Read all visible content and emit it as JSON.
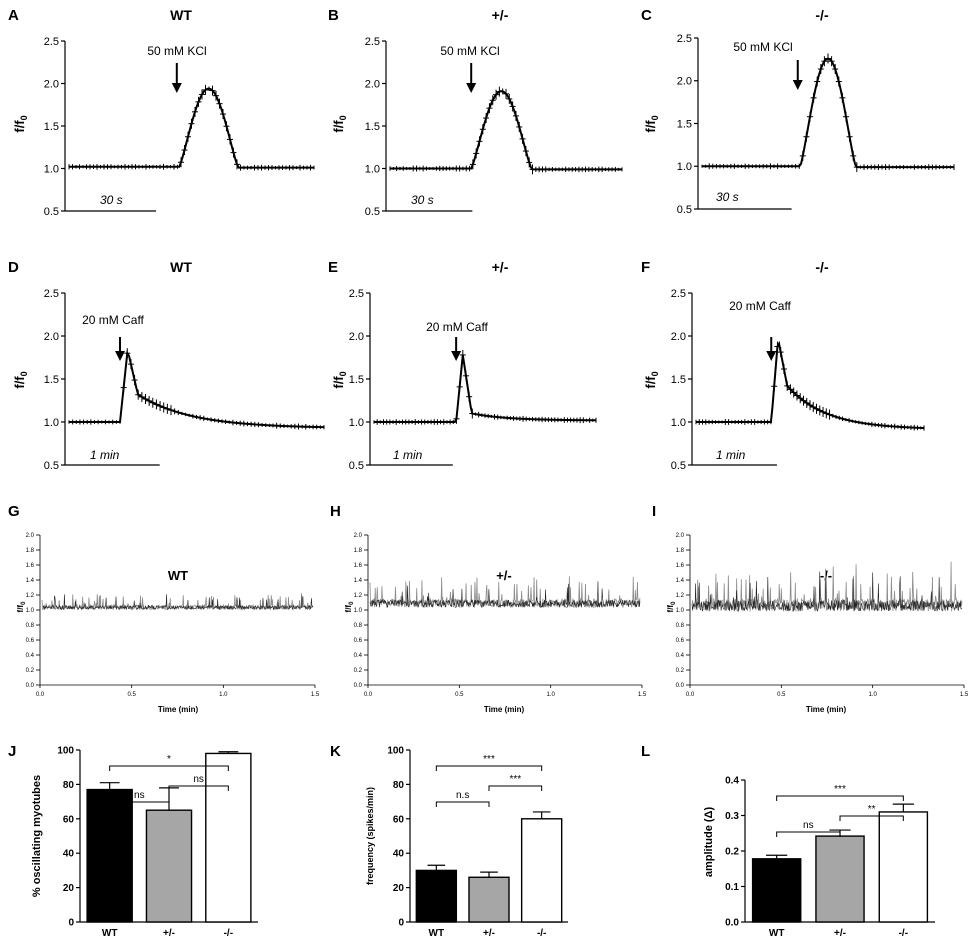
{
  "chart_data": [
    {
      "id": "A",
      "type": "line",
      "title": "WT",
      "ylabel": "f/f0",
      "ylim": [
        0.5,
        2.5
      ],
      "yticks": [
        "0.5",
        "1.0",
        "1.5",
        "2.0",
        "2.5"
      ],
      "annotation": "50 mM KCl",
      "scalebar": "30 s",
      "profile": "kcl",
      "base": 1.02,
      "peak": 1.94,
      "onset": 0.45,
      "width": 0.24,
      "errorbars": true,
      "arrow_x": 0.44
    },
    {
      "id": "B",
      "type": "line",
      "title": "+/-",
      "ylabel": "f/f0",
      "ylim": [
        0.5,
        2.5
      ],
      "yticks": [
        "0.5",
        "1.0",
        "1.5",
        "2.0",
        "2.5"
      ],
      "annotation": "50 mM KCl",
      "scalebar": "30 s",
      "profile": "kcl",
      "base": 1.0,
      "peak": 1.91,
      "onset": 0.35,
      "width": 0.26,
      "errorbars": true,
      "arrow_x": 0.35
    },
    {
      "id": "C",
      "type": "line",
      "title": "-/-",
      "ylabel": "f/f0",
      "ylim": [
        0.5,
        2.5
      ],
      "yticks": [
        "0.5",
        "1.0",
        "1.5",
        "2.0",
        "2.5"
      ],
      "annotation": "50 mM KCl",
      "scalebar": "30 s",
      "profile": "kcl",
      "base": 1.0,
      "peak": 2.26,
      "onset": 0.39,
      "width": 0.22,
      "errorbars": true,
      "arrow_x": 0.38
    },
    {
      "id": "D",
      "type": "line",
      "title": "WT",
      "ylabel": "f/f0",
      "ylim": [
        0.5,
        2.5
      ],
      "yticks": [
        "0.5",
        "1.0",
        "1.5",
        "2.0",
        "2.5"
      ],
      "annotation": "20 mM Caff",
      "scalebar": "1 min",
      "profile": "caff",
      "base": 1.0,
      "peak": 1.84,
      "shoulder": 1.32,
      "end": 0.94,
      "onset": 0.2,
      "errorbars": true,
      "arrow_x": 0.2
    },
    {
      "id": "E",
      "type": "line",
      "title": "+/-",
      "ylabel": "f/f0",
      "ylim": [
        0.5,
        2.5
      ],
      "yticks": [
        "0.5",
        "1.0",
        "1.5",
        "2.0",
        "2.5"
      ],
      "annotation": "20 mM Caff",
      "scalebar": "1 min",
      "profile": "caff",
      "base": 1.0,
      "peak": 1.78,
      "shoulder": 1.1,
      "end": 1.02,
      "onset": 0.37,
      "errorbars": true,
      "arrow_x": 0.37
    },
    {
      "id": "F",
      "type": "line",
      "title": "-/-",
      "ylabel": "f/f0",
      "ylim": [
        0.5,
        2.5
      ],
      "yticks": [
        "0.5",
        "1.0",
        "1.5",
        "2.0",
        "2.5"
      ],
      "annotation": "20 mM Caff",
      "scalebar": "1 min",
      "profile": "caff",
      "base": 1.0,
      "peak": 1.97,
      "shoulder": 1.42,
      "end": 0.93,
      "onset": 0.33,
      "errorbars": true,
      "arrow_x": 0.33
    },
    {
      "id": "G",
      "type": "line",
      "title": "WT",
      "ylabel": "f/f0",
      "xlabel": "Time (min)",
      "ylim": [
        0.0,
        2.0
      ],
      "xlim": [
        0.0,
        1.5
      ],
      "yticks": [
        "0.0",
        "0.2",
        "0.4",
        "0.6",
        "0.8",
        "1.0",
        "1.2",
        "1.4",
        "1.6",
        "1.8",
        "2.0"
      ],
      "xticks": [
        "0.0",
        "0.5",
        "1.0",
        "1.5"
      ],
      "profile": "osc",
      "base": 1.03,
      "amp": 0.18,
      "seed": 3
    },
    {
      "id": "H",
      "type": "line",
      "title": "+/-",
      "ylabel": "f/f0",
      "xlabel": "Time (min)",
      "ylim": [
        0.0,
        2.0
      ],
      "xlim": [
        0.0,
        1.5
      ],
      "yticks": [
        "0.0",
        "0.2",
        "0.4",
        "0.6",
        "0.8",
        "1.0",
        "1.2",
        "1.4",
        "1.6",
        "1.8",
        "2.0"
      ],
      "xticks": [
        "0.0",
        "0.5",
        "1.0",
        "1.5"
      ],
      "profile": "osc",
      "base": 1.08,
      "amp": 0.34,
      "seed": 7
    },
    {
      "id": "I",
      "type": "line",
      "title": "-/-",
      "ylabel": "f/f0",
      "xlabel": "Time (min)",
      "ylim": [
        0.0,
        2.0
      ],
      "xlim": [
        0.0,
        1.5
      ],
      "yticks": [
        "0.0",
        "0.2",
        "0.4",
        "0.6",
        "0.8",
        "1.0",
        "1.2",
        "1.4",
        "1.6",
        "1.8",
        "2.0"
      ],
      "xticks": [
        "0.0",
        "0.5",
        "1.0",
        "1.5"
      ],
      "profile": "osc",
      "base": 1.05,
      "amp": 0.5,
      "seed": 11
    },
    {
      "id": "J",
      "type": "bar",
      "ylabel": "% oscillating myotubes",
      "ylim": [
        0,
        100
      ],
      "yticks": [
        "0",
        "20",
        "40",
        "60",
        "80",
        "100"
      ],
      "categories": [
        "WT",
        "+/-",
        "-/-"
      ],
      "values": [
        77,
        65,
        98
      ],
      "errors": [
        4,
        13,
        1
      ],
      "colors": [
        "#000000",
        "#a6a6a6",
        "#ffffff"
      ],
      "brackets": [
        {
          "from": 0,
          "to": 2,
          "label": "*",
          "level": 0
        },
        {
          "from": 1,
          "to": 2,
          "label": "ns",
          "level": 1
        },
        {
          "from": 0,
          "to": 1,
          "label": "ns",
          "level": 2
        }
      ]
    },
    {
      "id": "K",
      "type": "bar",
      "ylabel": "frequency (spikes/min)",
      "ylim": [
        0,
        100
      ],
      "yticks": [
        "0",
        "20",
        "40",
        "60",
        "80",
        "100"
      ],
      "categories": [
        "WT",
        "+/-",
        "-/-"
      ],
      "values": [
        30,
        26,
        60
      ],
      "errors": [
        3,
        3,
        4
      ],
      "colors": [
        "#000000",
        "#a6a6a6",
        "#ffffff"
      ],
      "brackets": [
        {
          "from": 0,
          "to": 2,
          "label": "***",
          "level": 0
        },
        {
          "from": 1,
          "to": 2,
          "label": "***",
          "level": 1
        },
        {
          "from": 0,
          "to": 1,
          "label": "n.s",
          "level": 2
        }
      ]
    },
    {
      "id": "L",
      "type": "bar",
      "ylabel": "amplitude (Δ)",
      "ylim": [
        0,
        0.4
      ],
      "yticks": [
        "0.0",
        "0.1",
        "0.2",
        "0.3",
        "0.4"
      ],
      "categories": [
        "WT",
        "+/-",
        "-/-"
      ],
      "values": [
        0.178,
        0.242,
        0.31
      ],
      "errors": [
        0.01,
        0.017,
        0.022
      ],
      "colors": [
        "#000000",
        "#a6a6a6",
        "#ffffff"
      ],
      "brackets": [
        {
          "from": 0,
          "to": 2,
          "label": "***",
          "level": 0
        },
        {
          "from": 1,
          "to": 2,
          "label": "**",
          "level": 1
        },
        {
          "from": 0,
          "to": 1,
          "label": "ns",
          "level": 2
        }
      ]
    }
  ]
}
